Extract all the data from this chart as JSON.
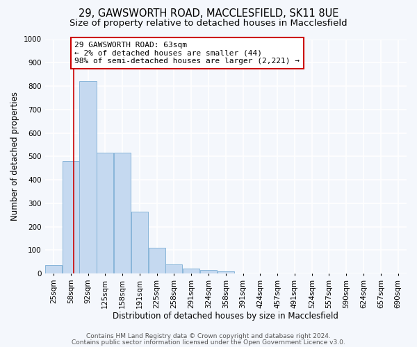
{
  "title1": "29, GAWSWORTH ROAD, MACCLESFIELD, SK11 8UE",
  "title2": "Size of property relative to detached houses in Macclesfield",
  "xlabel": "Distribution of detached houses by size in Macclesfield",
  "ylabel": "Number of detached properties",
  "categories": [
    "25sqm",
    "58sqm",
    "92sqm",
    "125sqm",
    "158sqm",
    "191sqm",
    "225sqm",
    "258sqm",
    "291sqm",
    "324sqm",
    "358sqm",
    "391sqm",
    "424sqm",
    "457sqm",
    "491sqm",
    "524sqm",
    "557sqm",
    "590sqm",
    "624sqm",
    "657sqm",
    "690sqm"
  ],
  "values": [
    35,
    480,
    820,
    515,
    515,
    265,
    110,
    40,
    22,
    15,
    10,
    0,
    0,
    0,
    0,
    0,
    0,
    0,
    0,
    0,
    0
  ],
  "bar_color": "#c5d9f0",
  "bar_edge_color": "#7badd4",
  "vline_color": "#cc0000",
  "vline_x": 1.18,
  "annotation_text": "29 GAWSWORTH ROAD: 63sqm\n← 2% of detached houses are smaller (44)\n98% of semi-detached houses are larger (2,221) →",
  "annotation_box_facecolor": "#ffffff",
  "annotation_box_edgecolor": "#cc0000",
  "ylim": [
    0,
    1000
  ],
  "yticks": [
    0,
    100,
    200,
    300,
    400,
    500,
    600,
    700,
    800,
    900,
    1000
  ],
  "footer1": "Contains HM Land Registry data © Crown copyright and database right 2024.",
  "footer2": "Contains public sector information licensed under the Open Government Licence v3.0.",
  "bg_color": "#f4f7fc",
  "plot_bg_color": "#f4f7fc",
  "grid_color": "#ffffff",
  "title1_fontsize": 10.5,
  "title2_fontsize": 9.5,
  "xlabel_fontsize": 8.5,
  "ylabel_fontsize": 8.5,
  "tick_fontsize": 7.5,
  "annotation_fontsize": 8,
  "footer_fontsize": 6.5
}
